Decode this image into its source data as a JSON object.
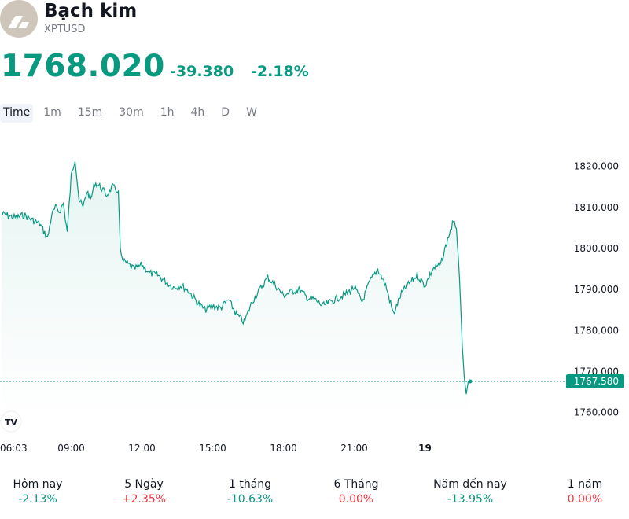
{
  "symbol": {
    "name": "Bạch kim",
    "ticker": "XPTUSD",
    "icon": "platinum-bars-icon"
  },
  "quote": {
    "price": "1768.020",
    "change": "-39.380",
    "change_percent": "-2.18%"
  },
  "intervals": [
    "Time",
    "1m",
    "15m",
    "30m",
    "1h",
    "4h",
    "D",
    "W"
  ],
  "active_interval": "Time",
  "colors": {
    "up": "#089981",
    "down": "#f23645",
    "line": "#089981",
    "area_fill": "#e9f5f2",
    "last_price_tag": "#089981"
  },
  "chart_data": {
    "type": "area",
    "x_ticks": [
      "06:03",
      "09:00",
      "12:00",
      "15:00",
      "18:00",
      "21:00",
      "19"
    ],
    "y_ticks": [
      "1820.000",
      "1810.000",
      "1800.000",
      "1790.000",
      "1780.000",
      "1770.000",
      "1760.000"
    ],
    "ylim": [
      1758,
      1828
    ],
    "last_price_label": "1767.580",
    "last_price": 1767.58,
    "x_range": [
      "06:03",
      "01:55"
    ],
    "series": [
      {
        "x": [
          "06:03",
          "06:20",
          "06:40",
          "07:00",
          "07:20",
          "07:40",
          "08:00",
          "08:10",
          "08:20",
          "08:30",
          "08:40",
          "08:50",
          "09:00",
          "09:10",
          "09:20",
          "09:30",
          "09:40",
          "09:50",
          "10:00",
          "10:15",
          "10:30",
          "10:45",
          "11:00",
          "11:05",
          "11:10",
          "11:20",
          "11:40",
          "12:00",
          "12:20",
          "12:40",
          "13:00",
          "13:20",
          "13:40",
          "14:00",
          "14:20",
          "14:40",
          "15:00",
          "15:20",
          "15:40",
          "16:00",
          "16:20",
          "16:40",
          "17:00",
          "17:20",
          "17:40",
          "18:00",
          "18:20",
          "18:40",
          "19:00",
          "19:20",
          "19:40",
          "20:00",
          "20:20",
          "20:40",
          "21:00",
          "21:20",
          "21:40",
          "22:00",
          "22:20",
          "22:40",
          "23:00",
          "23:20",
          "23:40",
          "00:00",
          "00:20",
          "00:40",
          "01:00",
          "01:10",
          "01:20",
          "01:30",
          "01:35",
          "01:40",
          "01:45",
          "01:50",
          "01:55"
        ],
        "y": [
          1808.5,
          1808.0,
          1807.5,
          1808.2,
          1807.0,
          1806.0,
          1802.5,
          1808.0,
          1810.0,
          1809.0,
          1811.0,
          1804.0,
          1817.5,
          1822.0,
          1812.0,
          1810.0,
          1814.0,
          1812.0,
          1816.0,
          1815.0,
          1813.0,
          1815.0,
          1814.0,
          1800.0,
          1797.0,
          1796.5,
          1795.0,
          1796.0,
          1794.0,
          1793.5,
          1792.0,
          1790.5,
          1791.0,
          1789.5,
          1787.0,
          1785.0,
          1786.0,
          1785.5,
          1787.5,
          1784.0,
          1782.0,
          1787.0,
          1790.0,
          1793.0,
          1791.0,
          1788.5,
          1789.5,
          1790.0,
          1788.0,
          1787.5,
          1786.0,
          1787.0,
          1788.0,
          1789.0,
          1790.5,
          1787.0,
          1792.0,
          1795.0,
          1791.0,
          1784.0,
          1789.0,
          1791.5,
          1793.5,
          1791.0,
          1795.0,
          1796.0,
          1803.0,
          1806.0,
          1805.5,
          1788.0,
          1776.0,
          1768.5,
          1764.5,
          1767.5,
          1767.6
        ]
      }
    ]
  },
  "performance": [
    {
      "label": "Hôm nay",
      "value": "-2.13%",
      "sign": "neg"
    },
    {
      "label": "5 Ngày",
      "value": "+2.35%",
      "sign": "pos"
    },
    {
      "label": "1 tháng",
      "value": "-10.63%",
      "sign": "neg"
    },
    {
      "label": "6 Tháng",
      "value": "0.00%",
      "sign": "zero"
    },
    {
      "label": "Năm đến nay",
      "value": "-13.95%",
      "sign": "neg"
    },
    {
      "label": "1 năm",
      "value": "0.00%",
      "sign": "zero"
    }
  ],
  "branding": {
    "icon": "tradingview-logo-icon",
    "text": "TV"
  }
}
